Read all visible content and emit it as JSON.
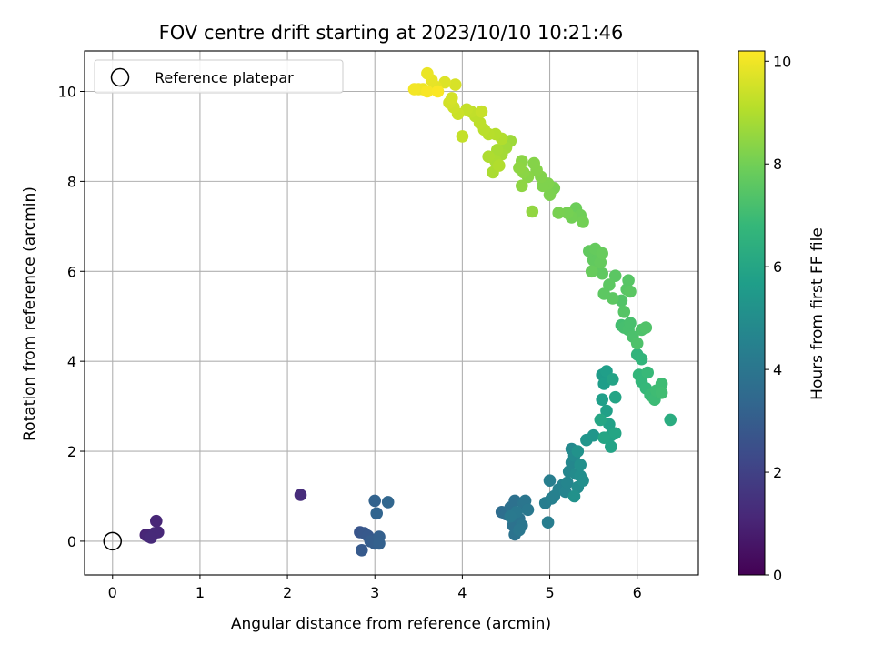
{
  "chart_data": {
    "type": "scatter",
    "title": "FOV centre drift starting at 2023/10/10 10:21:46",
    "xlabel": "Angular distance from reference (arcmin)",
    "ylabel": "Rotation from reference (arcmin)",
    "xlim": [
      -0.32,
      6.7
    ],
    "ylim": [
      -0.75,
      10.9
    ],
    "xticks": [
      "0",
      "1",
      "2",
      "3",
      "4",
      "5",
      "6"
    ],
    "yticks": [
      "0",
      "2",
      "4",
      "6",
      "8",
      "10"
    ],
    "grid": true,
    "legend": {
      "position": "top-left",
      "entries": [
        "Reference platepar"
      ]
    },
    "reference_point": {
      "x": 0,
      "y": 0
    },
    "colorbar": {
      "label": "Hours from first FF file",
      "colormap": "viridis",
      "range": [
        0,
        10.2
      ],
      "ticks": [
        "0",
        "2",
        "4",
        "6",
        "8",
        "10"
      ]
    },
    "points": [
      {
        "x": 0.38,
        "y": 0.14,
        "h": 1.0
      },
      {
        "x": 0.42,
        "y": 0.1,
        "h": 1.0
      },
      {
        "x": 0.45,
        "y": 0.15,
        "h": 1.05
      },
      {
        "x": 0.4,
        "y": 0.12,
        "h": 1.1
      },
      {
        "x": 0.5,
        "y": 0.45,
        "h": 1.1
      },
      {
        "x": 0.52,
        "y": 0.2,
        "h": 1.15
      },
      {
        "x": 0.48,
        "y": 0.18,
        "h": 1.2
      },
      {
        "x": 0.44,
        "y": 0.08,
        "h": 1.2
      },
      {
        "x": 2.15,
        "y": 1.03,
        "h": 1.3
      },
      {
        "x": 2.83,
        "y": 0.2,
        "h": 2.7
      },
      {
        "x": 2.88,
        "y": 0.18,
        "h": 2.8
      },
      {
        "x": 2.92,
        "y": 0.12,
        "h": 2.85
      },
      {
        "x": 2.85,
        "y": -0.2,
        "h": 2.9
      },
      {
        "x": 2.95,
        "y": 0.0,
        "h": 3.0
      },
      {
        "x": 3.0,
        "y": -0.05,
        "h": 3.05
      },
      {
        "x": 3.05,
        "y": 0.1,
        "h": 3.1
      },
      {
        "x": 3.05,
        "y": -0.05,
        "h": 3.15
      },
      {
        "x": 3.0,
        "y": 0.9,
        "h": 3.2
      },
      {
        "x": 3.02,
        "y": 0.62,
        "h": 3.3
      },
      {
        "x": 3.15,
        "y": 0.87,
        "h": 3.35
      },
      {
        "x": 4.45,
        "y": 0.65,
        "h": 3.6
      },
      {
        "x": 4.5,
        "y": 0.6,
        "h": 3.7
      },
      {
        "x": 4.55,
        "y": 0.75,
        "h": 3.8
      },
      {
        "x": 4.6,
        "y": 0.9,
        "h": 3.8
      },
      {
        "x": 4.58,
        "y": 0.35,
        "h": 3.85
      },
      {
        "x": 4.6,
        "y": 0.15,
        "h": 3.9
      },
      {
        "x": 4.65,
        "y": 0.5,
        "h": 3.9
      },
      {
        "x": 4.7,
        "y": 0.85,
        "h": 3.95
      },
      {
        "x": 4.72,
        "y": 0.9,
        "h": 4.0
      },
      {
        "x": 4.68,
        "y": 0.35,
        "h": 4.0
      },
      {
        "x": 4.65,
        "y": 0.25,
        "h": 4.05
      },
      {
        "x": 4.75,
        "y": 0.7,
        "h": 4.1
      },
      {
        "x": 4.62,
        "y": 0.65,
        "h": 4.1
      },
      {
        "x": 4.55,
        "y": 0.55,
        "h": 4.15
      },
      {
        "x": 4.95,
        "y": 0.85,
        "h": 4.3
      },
      {
        "x": 4.98,
        "y": 0.42,
        "h": 4.3
      },
      {
        "x": 5.0,
        "y": 1.35,
        "h": 4.35
      },
      {
        "x": 5.02,
        "y": 0.95,
        "h": 4.4
      },
      {
        "x": 5.05,
        "y": 1.0,
        "h": 4.45
      },
      {
        "x": 5.1,
        "y": 1.15,
        "h": 4.5
      },
      {
        "x": 5.15,
        "y": 1.25,
        "h": 4.55
      },
      {
        "x": 5.18,
        "y": 1.1,
        "h": 4.6
      },
      {
        "x": 5.2,
        "y": 1.3,
        "h": 4.65
      },
      {
        "x": 5.22,
        "y": 1.55,
        "h": 4.7
      },
      {
        "x": 5.25,
        "y": 1.75,
        "h": 4.75
      },
      {
        "x": 5.25,
        "y": 2.05,
        "h": 4.8
      },
      {
        "x": 5.28,
        "y": 1.9,
        "h": 4.85
      },
      {
        "x": 5.3,
        "y": 1.5,
        "h": 4.9
      },
      {
        "x": 5.32,
        "y": 1.2,
        "h": 4.95
      },
      {
        "x": 5.35,
        "y": 1.45,
        "h": 5.0
      },
      {
        "x": 5.38,
        "y": 1.35,
        "h": 5.05
      },
      {
        "x": 5.35,
        "y": 1.7,
        "h": 5.1
      },
      {
        "x": 5.28,
        "y": 1.0,
        "h": 5.15
      },
      {
        "x": 5.32,
        "y": 2.0,
        "h": 5.2
      },
      {
        "x": 5.42,
        "y": 2.25,
        "h": 5.3
      },
      {
        "x": 5.5,
        "y": 2.35,
        "h": 5.35
      },
      {
        "x": 5.6,
        "y": 3.7,
        "h": 5.6
      },
      {
        "x": 5.62,
        "y": 3.5,
        "h": 5.65
      },
      {
        "x": 5.65,
        "y": 3.78,
        "h": 5.7
      },
      {
        "x": 5.6,
        "y": 3.15,
        "h": 5.7
      },
      {
        "x": 5.65,
        "y": 2.9,
        "h": 5.75
      },
      {
        "x": 5.68,
        "y": 2.6,
        "h": 5.8
      },
      {
        "x": 5.7,
        "y": 2.35,
        "h": 5.85
      },
      {
        "x": 5.7,
        "y": 2.1,
        "h": 5.9
      },
      {
        "x": 5.72,
        "y": 3.6,
        "h": 5.9
      },
      {
        "x": 5.75,
        "y": 3.2,
        "h": 5.95
      },
      {
        "x": 5.75,
        "y": 2.4,
        "h": 6.0
      },
      {
        "x": 5.62,
        "y": 2.3,
        "h": 6.0
      },
      {
        "x": 5.58,
        "y": 2.7,
        "h": 6.05
      },
      {
        "x": 6.38,
        "y": 2.7,
        "h": 6.3
      },
      {
        "x": 6.0,
        "y": 4.15,
        "h": 6.6
      },
      {
        "x": 6.05,
        "y": 4.05,
        "h": 6.65
      },
      {
        "x": 6.02,
        "y": 3.7,
        "h": 6.7
      },
      {
        "x": 6.05,
        "y": 3.55,
        "h": 6.75
      },
      {
        "x": 6.1,
        "y": 3.4,
        "h": 6.8
      },
      {
        "x": 6.12,
        "y": 3.75,
        "h": 6.85
      },
      {
        "x": 6.15,
        "y": 3.25,
        "h": 6.9
      },
      {
        "x": 6.2,
        "y": 3.15,
        "h": 6.95
      },
      {
        "x": 6.22,
        "y": 3.35,
        "h": 7.0
      },
      {
        "x": 6.28,
        "y": 3.5,
        "h": 7.0
      },
      {
        "x": 6.28,
        "y": 3.3,
        "h": 7.05
      },
      {
        "x": 5.82,
        "y": 4.8,
        "h": 7.1
      },
      {
        "x": 5.85,
        "y": 4.75,
        "h": 7.15
      },
      {
        "x": 5.9,
        "y": 4.7,
        "h": 7.2
      },
      {
        "x": 5.92,
        "y": 4.85,
        "h": 7.2
      },
      {
        "x": 5.95,
        "y": 4.55,
        "h": 7.25
      },
      {
        "x": 6.0,
        "y": 4.4,
        "h": 7.3
      },
      {
        "x": 6.05,
        "y": 4.7,
        "h": 7.3
      },
      {
        "x": 6.1,
        "y": 4.75,
        "h": 7.35
      },
      {
        "x": 5.82,
        "y": 5.35,
        "h": 7.4
      },
      {
        "x": 5.85,
        "y": 5.1,
        "h": 7.45
      },
      {
        "x": 5.88,
        "y": 5.6,
        "h": 7.5
      },
      {
        "x": 5.9,
        "y": 5.8,
        "h": 7.5
      },
      {
        "x": 5.92,
        "y": 5.55,
        "h": 7.55
      },
      {
        "x": 5.75,
        "y": 5.9,
        "h": 7.55
      },
      {
        "x": 5.72,
        "y": 5.4,
        "h": 7.6
      },
      {
        "x": 5.68,
        "y": 5.7,
        "h": 7.6
      },
      {
        "x": 5.62,
        "y": 5.5,
        "h": 7.6
      },
      {
        "x": 5.6,
        "y": 5.95,
        "h": 7.65
      },
      {
        "x": 5.55,
        "y": 6.1,
        "h": 7.65
      },
      {
        "x": 5.5,
        "y": 6.25,
        "h": 7.7
      },
      {
        "x": 5.45,
        "y": 6.45,
        "h": 7.7
      },
      {
        "x": 5.52,
        "y": 6.5,
        "h": 7.75
      },
      {
        "x": 5.58,
        "y": 6.2,
        "h": 7.75
      },
      {
        "x": 5.6,
        "y": 6.4,
        "h": 7.8
      },
      {
        "x": 5.48,
        "y": 6.0,
        "h": 7.8
      },
      {
        "x": 5.3,
        "y": 7.4,
        "h": 7.9
      },
      {
        "x": 5.35,
        "y": 7.25,
        "h": 7.95
      },
      {
        "x": 5.38,
        "y": 7.1,
        "h": 8.0
      },
      {
        "x": 5.25,
        "y": 7.2,
        "h": 8.0
      },
      {
        "x": 5.2,
        "y": 7.3,
        "h": 8.05
      },
      {
        "x": 5.1,
        "y": 7.3,
        "h": 8.1
      },
      {
        "x": 5.05,
        "y": 7.85,
        "h": 8.1
      },
      {
        "x": 5.0,
        "y": 7.7,
        "h": 8.15
      },
      {
        "x": 4.98,
        "y": 7.95,
        "h": 8.2
      },
      {
        "x": 4.92,
        "y": 7.9,
        "h": 8.2
      },
      {
        "x": 4.9,
        "y": 8.1,
        "h": 8.25
      },
      {
        "x": 4.85,
        "y": 8.25,
        "h": 8.3
      },
      {
        "x": 4.82,
        "y": 8.4,
        "h": 8.3
      },
      {
        "x": 4.75,
        "y": 8.1,
        "h": 8.35
      },
      {
        "x": 4.7,
        "y": 8.2,
        "h": 8.4
      },
      {
        "x": 4.68,
        "y": 8.45,
        "h": 8.4
      },
      {
        "x": 4.65,
        "y": 8.3,
        "h": 8.45
      },
      {
        "x": 4.68,
        "y": 7.9,
        "h": 8.45
      },
      {
        "x": 4.8,
        "y": 7.33,
        "h": 8.5
      },
      {
        "x": 4.55,
        "y": 8.9,
        "h": 8.7
      },
      {
        "x": 4.5,
        "y": 8.75,
        "h": 8.75
      },
      {
        "x": 4.45,
        "y": 8.6,
        "h": 8.8
      },
      {
        "x": 4.4,
        "y": 8.7,
        "h": 8.85
      },
      {
        "x": 4.38,
        "y": 8.45,
        "h": 8.9
      },
      {
        "x": 4.35,
        "y": 8.2,
        "h": 8.9
      },
      {
        "x": 4.3,
        "y": 8.55,
        "h": 8.95
      },
      {
        "x": 4.42,
        "y": 8.35,
        "h": 9.0
      },
      {
        "x": 4.45,
        "y": 8.95,
        "h": 9.0
      },
      {
        "x": 4.38,
        "y": 9.05,
        "h": 9.05
      },
      {
        "x": 4.3,
        "y": 9.05,
        "h": 9.1
      },
      {
        "x": 4.25,
        "y": 9.15,
        "h": 9.15
      },
      {
        "x": 4.2,
        "y": 9.3,
        "h": 9.2
      },
      {
        "x": 4.15,
        "y": 9.45,
        "h": 9.2
      },
      {
        "x": 4.1,
        "y": 9.55,
        "h": 9.25
      },
      {
        "x": 4.05,
        "y": 9.6,
        "h": 9.3
      },
      {
        "x": 4.0,
        "y": 9.0,
        "h": 9.3
      },
      {
        "x": 4.22,
        "y": 9.55,
        "h": 9.35
      },
      {
        "x": 3.95,
        "y": 9.5,
        "h": 9.4
      },
      {
        "x": 3.9,
        "y": 9.65,
        "h": 9.45
      },
      {
        "x": 3.85,
        "y": 9.75,
        "h": 9.5
      },
      {
        "x": 3.88,
        "y": 9.85,
        "h": 9.55
      },
      {
        "x": 3.92,
        "y": 10.15,
        "h": 9.6
      },
      {
        "x": 3.8,
        "y": 10.2,
        "h": 9.7
      },
      {
        "x": 3.7,
        "y": 10.1,
        "h": 9.8
      },
      {
        "x": 3.65,
        "y": 10.25,
        "h": 9.85
      },
      {
        "x": 3.6,
        "y": 10.4,
        "h": 9.9
      },
      {
        "x": 3.55,
        "y": 10.05,
        "h": 9.95
      },
      {
        "x": 3.5,
        "y": 10.05,
        "h": 10.0
      },
      {
        "x": 3.45,
        "y": 10.05,
        "h": 10.05
      },
      {
        "x": 3.6,
        "y": 10.0,
        "h": 10.1
      },
      {
        "x": 3.72,
        "y": 10.0,
        "h": 10.15
      }
    ]
  }
}
